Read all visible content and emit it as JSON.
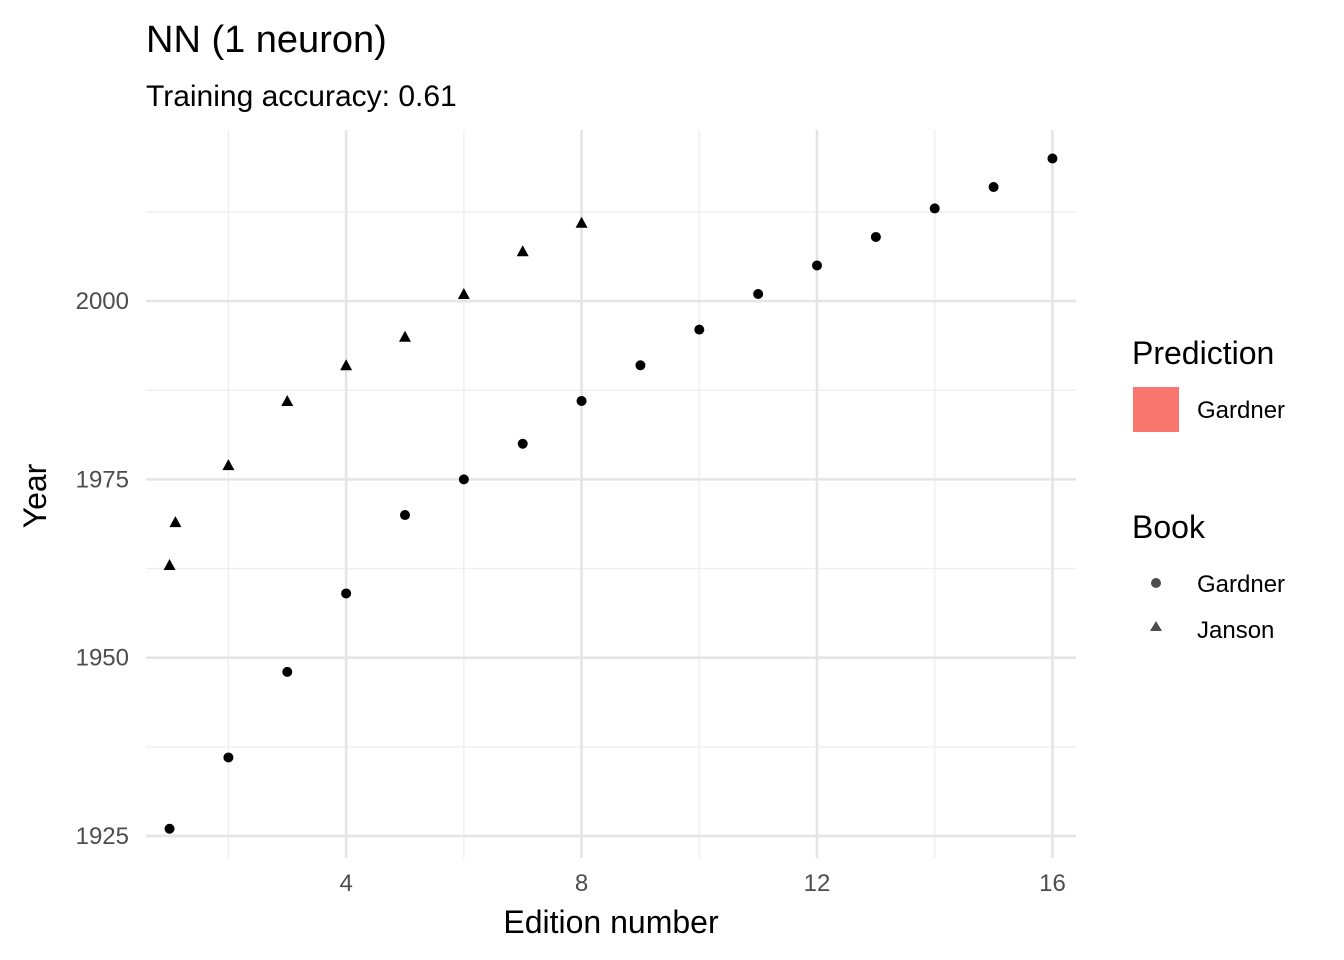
{
  "chart_data": {
    "type": "scatter",
    "title": "NN (1 neuron)",
    "subtitle": "Training accuracy: 0.61",
    "xlabel": "Edition number",
    "ylabel": "Year",
    "xlim": [
      0.6,
      16.4
    ],
    "ylim": [
      1921.9,
      2024.0
    ],
    "x_ticks": [
      4,
      8,
      12,
      16
    ],
    "x_minor": [
      2,
      6,
      10,
      14
    ],
    "y_ticks": [
      1925,
      1950,
      1975,
      2000
    ],
    "y_minor": [
      1937.5,
      1962.5,
      1987.5,
      2012.5
    ],
    "grid": true,
    "series": [
      {
        "name": "Gardner",
        "shape": "circle",
        "color": "#000000",
        "x": [
          1,
          2,
          3,
          4,
          5,
          6,
          7,
          8,
          9,
          10,
          11,
          12,
          13,
          14,
          15,
          16
        ],
        "y": [
          1926,
          1936,
          1948,
          1959,
          1970,
          1975,
          1980,
          1986,
          1991,
          1996,
          2001,
          2005,
          2009,
          2013,
          2016,
          2020
        ]
      },
      {
        "name": "Janson",
        "shape": "triangle",
        "color": "#000000",
        "x": [
          1,
          1.1,
          2,
          3,
          4,
          5,
          6,
          7,
          8
        ],
        "y": [
          1963,
          1969,
          1977,
          1986,
          1991,
          1995,
          2001,
          2007,
          2011
        ]
      }
    ],
    "legend": {
      "position": "right",
      "prediction_title": "Prediction",
      "prediction_items": [
        {
          "label": "Gardner",
          "color": "#F8766D"
        }
      ],
      "book_title": "Book",
      "book_items": [
        {
          "label": "Gardner",
          "shape": "circle",
          "color": "#4d4d4d"
        },
        {
          "label": "Janson",
          "shape": "triangle",
          "color": "#4d4d4d"
        }
      ]
    }
  }
}
